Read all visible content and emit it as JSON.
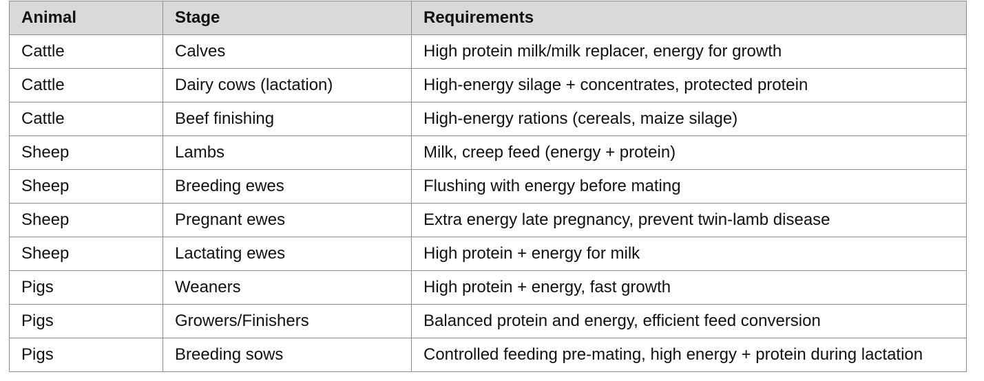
{
  "table": {
    "header": [
      "Animal",
      "Stage",
      "Requirements"
    ],
    "rows": [
      [
        "Cattle",
        "Calves",
        "High protein milk/milk replacer, energy for growth"
      ],
      [
        "Cattle",
        "Dairy cows (lactation)",
        "High-energy silage + concentrates, protected protein"
      ],
      [
        "Cattle",
        "Beef finishing",
        "High-energy rations (cereals, maize silage)"
      ],
      [
        "Sheep",
        "Lambs",
        "Milk, creep feed (energy + protein)"
      ],
      [
        "Sheep",
        "Breeding ewes",
        "Flushing with energy before mating"
      ],
      [
        "Sheep",
        "Pregnant ewes",
        "Extra energy late pregnancy, prevent twin-lamb disease"
      ],
      [
        "Sheep",
        "Lactating ewes",
        "High protein + energy for milk"
      ],
      [
        "Pigs",
        "Weaners",
        "High protein + energy, fast growth"
      ],
      [
        "Pigs",
        "Growers/Finishers",
        "Balanced protein and energy, efficient feed conversion"
      ],
      [
        "Pigs",
        "Breeding sows",
        "Controlled feeding pre-mating, high energy + protein during lactation"
      ]
    ]
  }
}
